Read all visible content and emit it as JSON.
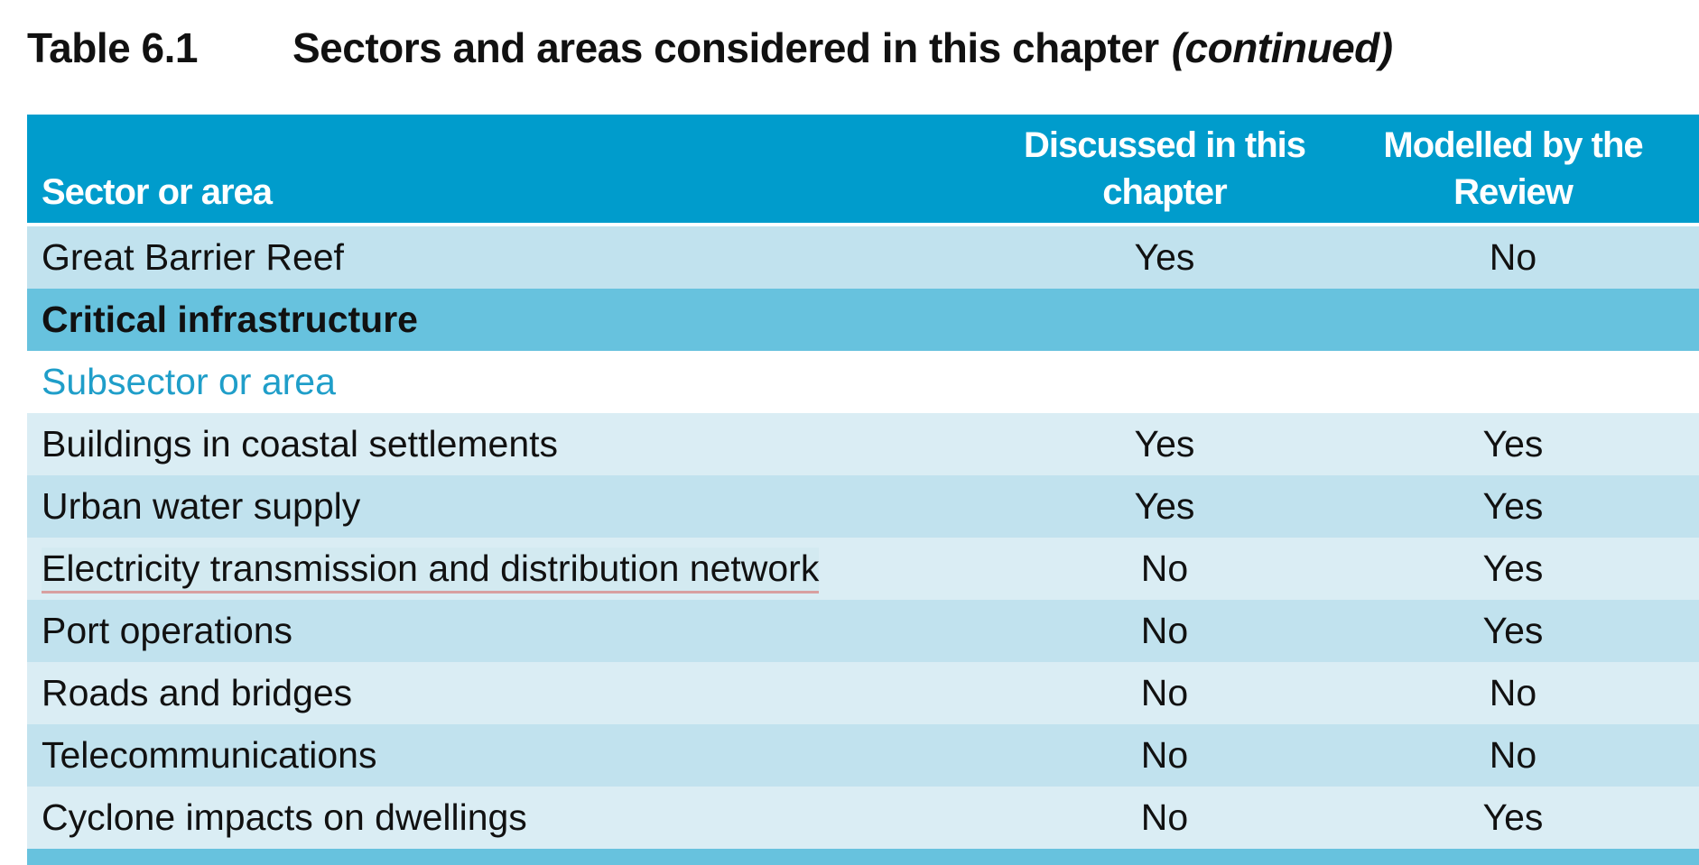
{
  "title": {
    "number": "Table 6.1",
    "text": "Sectors and areas considered in this chapter",
    "suffix": "(continued)"
  },
  "header": {
    "col1": "Sector or area",
    "col2": "Discussed in this chapter",
    "col3": "Modelled by the Review"
  },
  "rows": [
    {
      "sector": "Great Barrier Reef",
      "discussed": "Yes",
      "modelled": "No"
    }
  ],
  "section": {
    "label": "Critical infrastructure"
  },
  "subheader": {
    "label": "Subsector or area"
  },
  "subrows": [
    {
      "sector": "Buildings in coastal settlements",
      "discussed": "Yes",
      "modelled": "Yes"
    },
    {
      "sector": "Urban water supply",
      "discussed": "Yes",
      "modelled": "Yes"
    },
    {
      "sector": "Electricity transmission and distribution network",
      "discussed": "No",
      "modelled": "Yes"
    },
    {
      "sector": "Port operations",
      "discussed": "No",
      "modelled": "Yes"
    },
    {
      "sector": "Roads and bridges",
      "discussed": "No",
      "modelled": "No"
    },
    {
      "sector": "Telecommunications",
      "discussed": "No",
      "modelled": "No"
    },
    {
      "sector": "Cyclone impacts on dwellings",
      "discussed": "No",
      "modelled": "Yes"
    }
  ],
  "colors": {
    "header": "#009ccc",
    "section": "#67c2de",
    "row_mid": "#c1e2ee",
    "row_light": "#daedf4",
    "subheader_text": "#1f9ec9"
  }
}
